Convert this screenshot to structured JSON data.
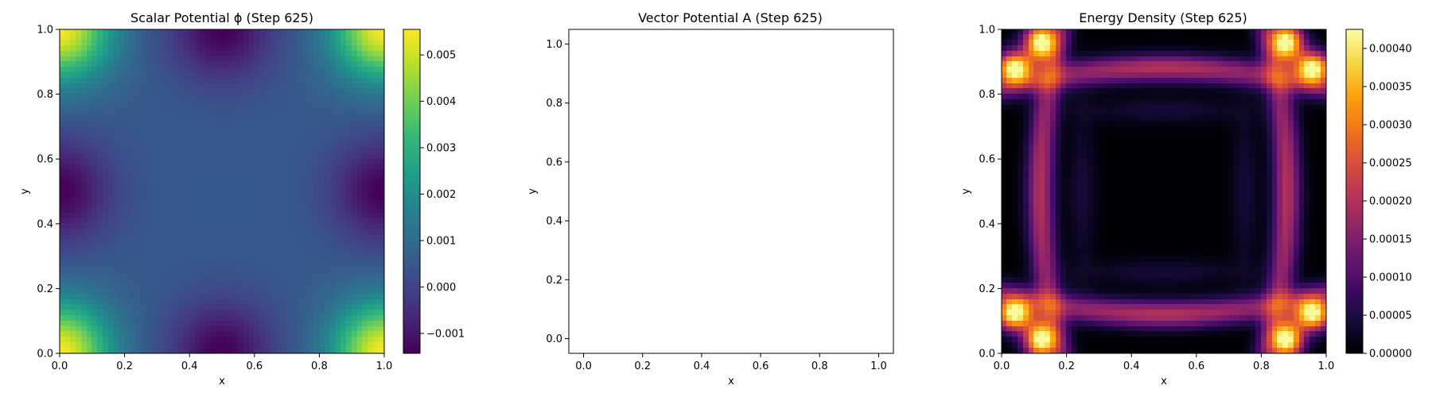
{
  "chart_data": [
    {
      "type": "heatmap",
      "title": "Scalar Potential ϕ (Step 625)",
      "xlabel": "x",
      "ylabel": "y",
      "xlim": [
        0.0,
        1.0
      ],
      "ylim": [
        0.0,
        1.0
      ],
      "xticks": [
        "0.0",
        "0.2",
        "0.4",
        "0.6",
        "0.8",
        "1.0"
      ],
      "yticks": [
        "0.0",
        "0.2",
        "0.4",
        "0.6",
        "0.8",
        "1.0"
      ],
      "colormap": "viridis",
      "colorbar": {
        "range": [
          -0.00143,
          0.00555
        ],
        "ticks": [
          {
            "value": -0.001,
            "label": "−0.001"
          },
          {
            "value": 0.0,
            "label": "0.000"
          },
          {
            "value": 0.001,
            "label": "0.001"
          },
          {
            "value": 0.002,
            "label": "0.002"
          },
          {
            "value": 0.003,
            "label": "0.003"
          },
          {
            "value": 0.004,
            "label": "0.004"
          },
          {
            "value": 0.005,
            "label": "0.005"
          }
        ]
      },
      "field": {
        "description": "symmetric pattern: high at corners, low at edge midpoints, flat plateau in center",
        "corner_max": 0.0055,
        "edge_mid_min": -0.0014,
        "center": 0.0005
      }
    },
    {
      "type": "quiver",
      "title": "Vector Potential A (Step 625)",
      "xlabel": "x",
      "ylabel": "y",
      "xlim": [
        -0.05,
        1.05
      ],
      "ylim": [
        -0.05,
        1.05
      ],
      "xticks": [
        "0.0",
        "0.2",
        "0.4",
        "0.6",
        "0.8",
        "1.0"
      ],
      "yticks": [
        "0.0",
        "0.2",
        "0.4",
        "0.6",
        "0.8",
        "1.0"
      ],
      "vectors": []
    },
    {
      "type": "heatmap",
      "title": "Energy Density (Step 625)",
      "xlabel": "x",
      "ylabel": "y",
      "xlim": [
        0.0,
        1.0
      ],
      "ylim": [
        0.0,
        1.0
      ],
      "xticks": [
        "0.0",
        "0.2",
        "0.4",
        "0.6",
        "0.8",
        "1.0"
      ],
      "yticks": [
        "0.0",
        "0.2",
        "0.4",
        "0.6",
        "0.8",
        "1.0"
      ],
      "colormap": "inferno",
      "colorbar": {
        "range": [
          0.0,
          0.000425
        ],
        "ticks": [
          {
            "value": 0.0,
            "label": "0.00000"
          },
          {
            "value": 5e-05,
            "label": "0.00005"
          },
          {
            "value": 0.0001,
            "label": "0.00010"
          },
          {
            "value": 0.00015,
            "label": "0.00015"
          },
          {
            "value": 0.0002,
            "label": "0.00020"
          },
          {
            "value": 0.00025,
            "label": "0.00025"
          },
          {
            "value": 0.0003,
            "label": "0.00030"
          },
          {
            "value": 0.00035,
            "label": "0.00035"
          },
          {
            "value": 0.0004,
            "label": "0.00040"
          }
        ]
      },
      "field": {
        "description": "bright blobs near corners, curved ring bands near edges, dark center",
        "peak": 0.00042,
        "band": 0.0002,
        "center": 0.0
      }
    }
  ]
}
